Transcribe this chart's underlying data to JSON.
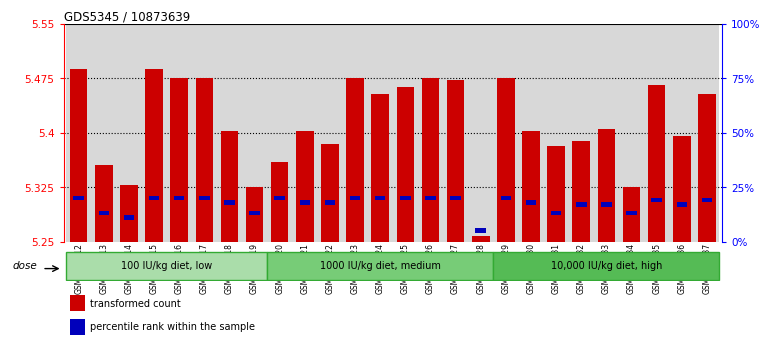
{
  "title": "GDS5345 / 10873639",
  "samples": [
    "GSM1502412",
    "GSM1502413",
    "GSM1502414",
    "GSM1502415",
    "GSM1502416",
    "GSM1502417",
    "GSM1502418",
    "GSM1502419",
    "GSM1502420",
    "GSM1502421",
    "GSM1502422",
    "GSM1502423",
    "GSM1502424",
    "GSM1502425",
    "GSM1502426",
    "GSM1502427",
    "GSM1502428",
    "GSM1502429",
    "GSM1502430",
    "GSM1502431",
    "GSM1502432",
    "GSM1502433",
    "GSM1502434",
    "GSM1502435",
    "GSM1502436",
    "GSM1502437"
  ],
  "transformed_counts": [
    5.488,
    5.355,
    5.328,
    5.488,
    5.475,
    5.475,
    5.402,
    5.325,
    5.36,
    5.402,
    5.385,
    5.475,
    5.453,
    5.463,
    5.475,
    5.472,
    5.258,
    5.475,
    5.402,
    5.382,
    5.388,
    5.405,
    5.325,
    5.465,
    5.395,
    5.453
  ],
  "percentile_ranks": [
    20,
    13,
    11,
    20,
    20,
    20,
    18,
    13,
    20,
    18,
    18,
    20,
    20,
    20,
    20,
    20,
    5,
    20,
    18,
    13,
    17,
    17,
    13,
    19,
    17,
    19
  ],
  "ymin": 5.25,
  "ymax": 5.55,
  "yticks": [
    5.25,
    5.325,
    5.4,
    5.475,
    5.55
  ],
  "right_ytick_vals": [
    0,
    25,
    50,
    75,
    100
  ],
  "bar_color": "#cc0000",
  "percentile_color": "#0000bb",
  "groups": [
    {
      "label": "100 IU/kg diet, low",
      "start": 0,
      "end": 8
    },
    {
      "label": "1000 IU/kg diet, medium",
      "start": 8,
      "end": 17
    },
    {
      "label": "10,000 IU/kg diet, high",
      "start": 17,
      "end": 26
    }
  ],
  "group_colors": [
    "#aaddaa",
    "#77cc77",
    "#55bb55"
  ],
  "group_border_color": "#33aa33",
  "dose_label": "dose",
  "legend_items": [
    {
      "label": "transformed count",
      "color": "#cc0000"
    },
    {
      "label": "percentile rank within the sample",
      "color": "#0000bb"
    }
  ],
  "col_bg_color": "#d8d8d8",
  "plot_bg_color": "#ffffff"
}
